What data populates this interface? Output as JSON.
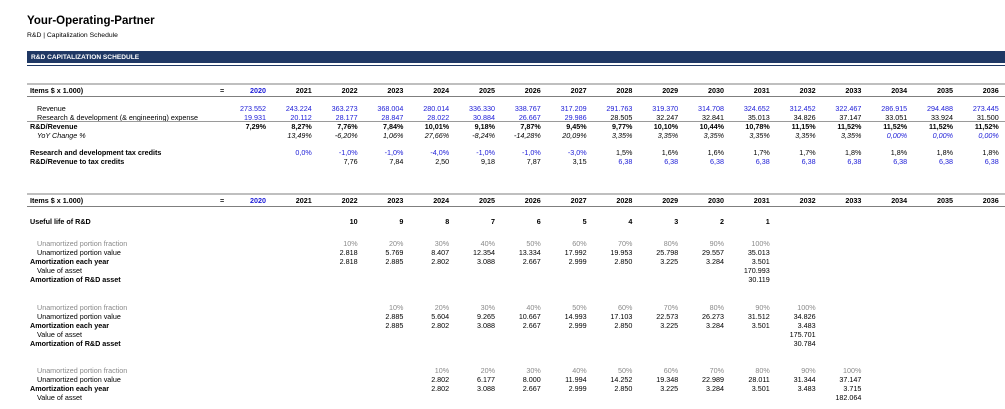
{
  "header": {
    "title": "Your-Operating-Partner",
    "subtitle": "R&D | Capitalization Schedule"
  },
  "banner": "R&D CAPITALIZATION SCHEDULE",
  "tables": [
    {
      "header": {
        "label": "Items $ x 1.000)",
        "sign": "=",
        "years": [
          2020,
          2021,
          2022,
          2023,
          2024,
          2025,
          2026,
          2027,
          2028,
          2029,
          2030,
          2031,
          2032,
          2033,
          2034,
          2035,
          2036
        ]
      },
      "rows": [
        {
          "label": "Revenue",
          "cells": [
            "273.552",
            "243.224",
            "363.273",
            "368.004",
            "280.014",
            "336.330",
            "338.767",
            "317.209",
            "291.763",
            "319.370",
            "314.708",
            "324.652",
            "312.452",
            "322.467",
            "286.915",
            "294.488",
            "273.445"
          ]
        },
        {
          "label": "Research & development (& engineering) expense",
          "cells": [
            "19.931",
            "20.112",
            "28.177",
            "28.847",
            "28.022",
            "30.884",
            "26.667",
            "29.986",
            "28.505",
            "32.247",
            "32.841",
            "35.013",
            "34.826",
            "37.147",
            "33.051",
            "33.924",
            "31.500"
          ]
        },
        {
          "label": "R&D/Revenue",
          "cells": [
            "7,29%",
            "8,27%",
            "7,76%",
            "7,84%",
            "10,01%",
            "9,18%",
            "7,87%",
            "9,45%",
            "9,77%",
            "10,10%",
            "10,44%",
            "10,78%",
            "11,15%",
            "11,52%",
            "11,52%",
            "11,52%",
            "11,52%"
          ]
        },
        {
          "label": "YoY Change %",
          "cells": [
            null,
            "13,49%",
            "-6,20%",
            "1,06%",
            "27,66%",
            "-8,24%",
            "-14,28%",
            "20,09%",
            "3,35%",
            "3,35%",
            "3,35%",
            "3,35%",
            "3,35%",
            "3,35%",
            "0,00%",
            "0,00%",
            "0,00%"
          ]
        },
        {
          "label": "Research and development tax credits",
          "cells": [
            null,
            "0,0%",
            "-1,0%",
            "-1,0%",
            "-4,0%",
            "-1,0%",
            "-1,0%",
            "-3,0%",
            "1,5%",
            "1,6%",
            "1,6%",
            "1,7%",
            "1,7%",
            "1,8%",
            "1,8%",
            "1,8%",
            "1,8%"
          ]
        },
        {
          "label": "R&D/Revenue to tax credits",
          "cells": [
            null,
            null,
            "7,76",
            "7,84",
            "2,50",
            "9,18",
            "7,87",
            "3,15",
            "6,38",
            "6,38",
            "6,38",
            "6,38",
            "6,38",
            "6,38",
            "6,38",
            "6,38",
            "6,38"
          ]
        }
      ]
    },
    {
      "header": {
        "label": "Items $ x 1.000)",
        "sign": "=",
        "years": [
          2020,
          2021,
          2022,
          2023,
          2024,
          2025,
          2026,
          2027,
          2028,
          2029,
          2030,
          2031,
          2032,
          2033,
          2034,
          2035,
          2036
        ]
      },
      "rows": [
        {
          "label": "Useful life of R&D",
          "cells": [
            null,
            null,
            "10",
            "9",
            "8",
            "7",
            "6",
            "5",
            "4",
            "3",
            "2",
            "1",
            null,
            null,
            null,
            null,
            null
          ]
        },
        {
          "label": "Unamortized portion fraction",
          "cells": [
            null,
            null,
            "10%",
            "20%",
            "30%",
            "40%",
            "50%",
            "60%",
            "70%",
            "80%",
            "90%",
            "100%",
            null,
            null,
            null,
            null,
            null
          ]
        },
        {
          "label": "Unamortized portion value",
          "cells": [
            null,
            null,
            "2.818",
            "5.769",
            "8.407",
            "12.354",
            "13.334",
            "17.992",
            "19.953",
            "25.798",
            "29.557",
            "35.013",
            null,
            null,
            null,
            null,
            null
          ]
        },
        {
          "label": "Amortization each year",
          "cells": [
            null,
            null,
            "2.818",
            "2.885",
            "2.802",
            "3.088",
            "2.667",
            "2.999",
            "2.850",
            "3.225",
            "3.284",
            "3.501",
            null,
            null,
            null,
            null,
            null
          ]
        },
        {
          "label": "Value of asset",
          "cells": [
            null,
            null,
            null,
            null,
            null,
            null,
            null,
            null,
            null,
            null,
            null,
            "170.993",
            null,
            null,
            null,
            null,
            null
          ]
        },
        {
          "label": "Amortization of R&D asset",
          "cells": [
            null,
            null,
            null,
            null,
            null,
            null,
            null,
            null,
            null,
            null,
            null,
            "30.119",
            null,
            null,
            null,
            null,
            null
          ]
        },
        {
          "label": "Unamortized portion fraction",
          "cells": [
            null,
            null,
            null,
            "10%",
            "20%",
            "30%",
            "40%",
            "50%",
            "60%",
            "70%",
            "80%",
            "90%",
            "100%",
            null,
            null,
            null,
            null
          ]
        },
        {
          "label": "Unamortized portion value",
          "cells": [
            null,
            null,
            null,
            "2.885",
            "5.604",
            "9.265",
            "10.667",
            "14.993",
            "17.103",
            "22.573",
            "26.273",
            "31.512",
            "34.826",
            null,
            null,
            null,
            null
          ]
        },
        {
          "label": "Amortization each year",
          "cells": [
            null,
            null,
            null,
            "2.885",
            "2.802",
            "3.088",
            "2.667",
            "2.999",
            "2.850",
            "3.225",
            "3.284",
            "3.501",
            "3.483",
            null,
            null,
            null,
            null
          ]
        },
        {
          "label": "Value of asset",
          "cells": [
            null,
            null,
            null,
            null,
            null,
            null,
            null,
            null,
            null,
            null,
            null,
            null,
            "175.701",
            null,
            null,
            null,
            null
          ]
        },
        {
          "label": "Amortization of R&D asset",
          "cells": [
            null,
            null,
            null,
            null,
            null,
            null,
            null,
            null,
            null,
            null,
            null,
            null,
            "30.784",
            null,
            null,
            null,
            null
          ]
        },
        {
          "label": "Unamortized portion fraction",
          "cells": [
            null,
            null,
            null,
            null,
            "10%",
            "20%",
            "30%",
            "40%",
            "50%",
            "60%",
            "70%",
            "80%",
            "90%",
            "100%",
            null,
            null,
            null
          ]
        },
        {
          "label": "Unamortized portion value",
          "cells": [
            null,
            null,
            null,
            null,
            "2.802",
            "6.177",
            "8.000",
            "11.994",
            "14.252",
            "19.348",
            "22.989",
            "28.011",
            "31.344",
            "37.147",
            null,
            null,
            null
          ]
        },
        {
          "label": "Amortization each year",
          "cells": [
            null,
            null,
            null,
            null,
            "2.802",
            "3.088",
            "2.667",
            "2.999",
            "2.850",
            "3.225",
            "3.284",
            "3.501",
            "3.483",
            "3.715",
            null,
            null,
            null
          ]
        },
        {
          "label": "Value of asset",
          "cells": [
            null,
            null,
            null,
            null,
            null,
            null,
            null,
            null,
            null,
            null,
            null,
            null,
            null,
            "182.064",
            null,
            null,
            null
          ]
        }
      ]
    }
  ]
}
